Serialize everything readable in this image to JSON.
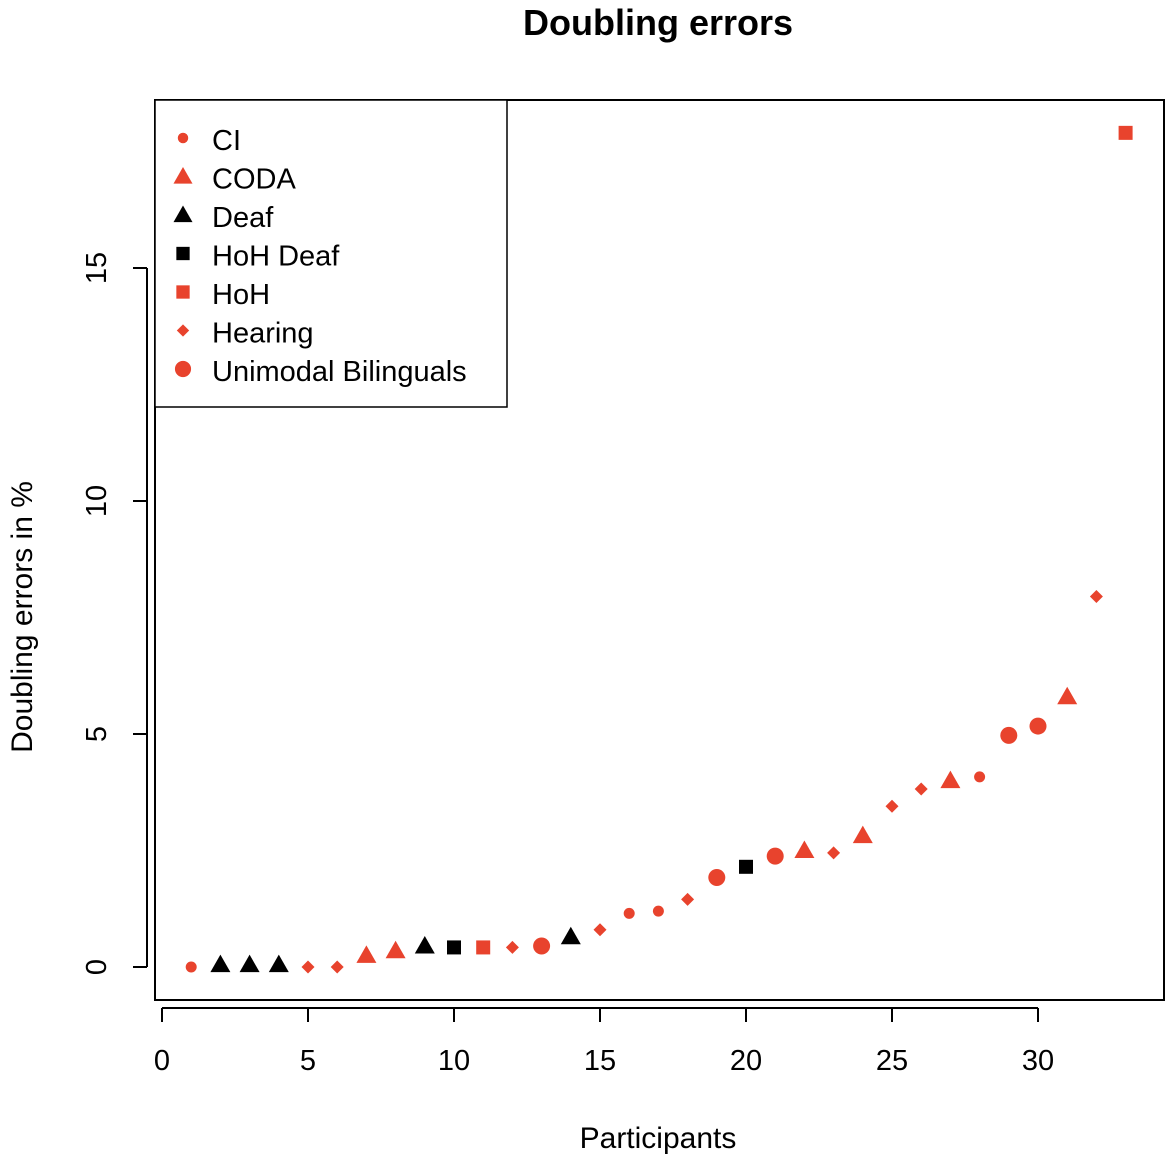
{
  "chart_data": {
    "type": "scatter",
    "title": "Doubling errors",
    "xlabel": "Participants",
    "ylabel": "Doubling errors in %",
    "xlim": [
      0,
      34
    ],
    "ylim": [
      0,
      18
    ],
    "xticks": [
      0,
      5,
      10,
      15,
      20,
      25,
      30
    ],
    "yticks": [
      0,
      5,
      10,
      15
    ],
    "grid": false,
    "legend_position": "top-left",
    "colors": {
      "red": "#e8432d",
      "black": "#000000"
    },
    "groups": [
      {
        "name": "CI",
        "marker": "small-circle",
        "color": "#e8432d"
      },
      {
        "name": "CODA",
        "marker": "triangle",
        "color": "#e8432d"
      },
      {
        "name": "Deaf",
        "marker": "triangle",
        "color": "#000000"
      },
      {
        "name": "HoH Deaf",
        "marker": "square",
        "color": "#000000"
      },
      {
        "name": "HoH",
        "marker": "square",
        "color": "#e8432d"
      },
      {
        "name": "Hearing",
        "marker": "diamond",
        "color": "#e8432d"
      },
      {
        "name": "Unimodal Bilinguals",
        "marker": "circle",
        "color": "#e8432d"
      }
    ],
    "points": [
      {
        "x": 1,
        "y": 0.0,
        "group": "CI"
      },
      {
        "x": 2,
        "y": 0.05,
        "group": "Deaf"
      },
      {
        "x": 3,
        "y": 0.05,
        "group": "Deaf"
      },
      {
        "x": 4,
        "y": 0.05,
        "group": "Deaf"
      },
      {
        "x": 5,
        "y": 0.0,
        "group": "Hearing"
      },
      {
        "x": 6,
        "y": 0.0,
        "group": "Hearing"
      },
      {
        "x": 7,
        "y": 0.25,
        "group": "CODA"
      },
      {
        "x": 8,
        "y": 0.35,
        "group": "CODA"
      },
      {
        "x": 9,
        "y": 0.45,
        "group": "Deaf"
      },
      {
        "x": 10,
        "y": 0.42,
        "group": "HoH Deaf"
      },
      {
        "x": 11,
        "y": 0.42,
        "group": "HoH"
      },
      {
        "x": 12,
        "y": 0.42,
        "group": "Hearing"
      },
      {
        "x": 13,
        "y": 0.45,
        "group": "Unimodal Bilinguals"
      },
      {
        "x": 14,
        "y": 0.65,
        "group": "Deaf"
      },
      {
        "x": 15,
        "y": 0.8,
        "group": "Hearing"
      },
      {
        "x": 16,
        "y": 1.15,
        "group": "CI"
      },
      {
        "x": 17,
        "y": 1.2,
        "group": "CI"
      },
      {
        "x": 18,
        "y": 1.45,
        "group": "Hearing"
      },
      {
        "x": 19,
        "y": 1.92,
        "group": "Unimodal Bilinguals"
      },
      {
        "x": 20,
        "y": 2.15,
        "group": "HoH Deaf"
      },
      {
        "x": 21,
        "y": 2.38,
        "group": "Unimodal Bilinguals"
      },
      {
        "x": 22,
        "y": 2.5,
        "group": "CODA"
      },
      {
        "x": 23,
        "y": 2.45,
        "group": "Hearing"
      },
      {
        "x": 24,
        "y": 2.82,
        "group": "CODA"
      },
      {
        "x": 25,
        "y": 3.45,
        "group": "Hearing"
      },
      {
        "x": 26,
        "y": 3.82,
        "group": "Hearing"
      },
      {
        "x": 27,
        "y": 4.0,
        "group": "CODA"
      },
      {
        "x": 28,
        "y": 4.08,
        "group": "CI"
      },
      {
        "x": 29,
        "y": 4.97,
        "group": "Unimodal Bilinguals"
      },
      {
        "x": 30,
        "y": 5.17,
        "group": "Unimodal Bilinguals"
      },
      {
        "x": 31,
        "y": 5.8,
        "group": "CODA"
      },
      {
        "x": 32,
        "y": 7.95,
        "group": "Hearing"
      },
      {
        "x": 33,
        "y": 17.9,
        "group": "HoH"
      }
    ]
  }
}
